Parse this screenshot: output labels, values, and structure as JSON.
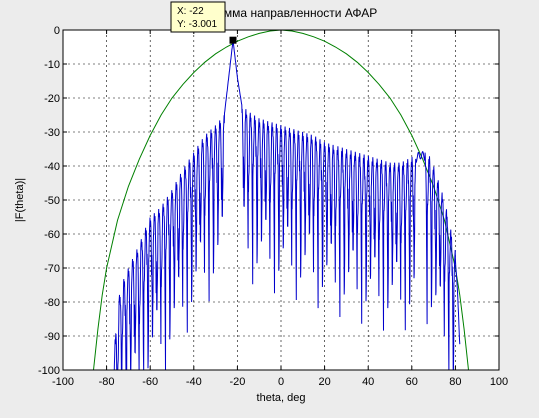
{
  "chart_data": {
    "type": "line",
    "title": "Диаграмма направленности АФАР",
    "xlabel": "theta, deg",
    "ylabel": "|F(theta)|",
    "xlim": [
      -100,
      100
    ],
    "ylim": [
      -100,
      0
    ],
    "xticks": [
      -100,
      -80,
      -60,
      -40,
      -20,
      0,
      20,
      40,
      60,
      80,
      100
    ],
    "yticks": [
      0,
      -10,
      -20,
      -30,
      -40,
      -50,
      -60,
      -70,
      -80,
      -90,
      -100
    ],
    "grid": true,
    "colors": {
      "array_pattern": "#0000cc",
      "element_pattern": "#008000",
      "plot_bg": "#ffffff",
      "figure_bg": "#ececec",
      "datatip_bg": "#ffffcc"
    },
    "element_pattern": {
      "x": [
        -86,
        -84,
        -82,
        -80,
        -75,
        -70,
        -65,
        -60,
        -55,
        -50,
        -45,
        -40,
        -35,
        -30,
        -25,
        -20,
        -15,
        -10,
        -5,
        0,
        5,
        10,
        15,
        20,
        25,
        30,
        35,
        40,
        45,
        50,
        55,
        60,
        65,
        70,
        75,
        80,
        82,
        84,
        86
      ],
      "y": [
        -100,
        -88,
        -78,
        -70,
        -56,
        -46,
        -38,
        -31,
        -25,
        -20,
        -16,
        -12.5,
        -9.5,
        -7,
        -5,
        -3.3,
        -2,
        -1,
        -0.3,
        0,
        -0.3,
        -1,
        -2,
        -3.3,
        -5,
        -7,
        -9.5,
        -12.5,
        -16,
        -20,
        -25,
        -31,
        -38,
        -46,
        -56,
        -70,
        -78,
        -88,
        -100
      ]
    },
    "array_envelope": {
      "x": [
        -77,
        -75,
        -72,
        -70,
        -65,
        -62,
        -60,
        -55,
        -50,
        -45,
        -40,
        -35,
        -30,
        -26,
        -24,
        -22,
        -20,
        -18,
        -15,
        -10,
        -5,
        0,
        5,
        10,
        15,
        20,
        25,
        30,
        35,
        40,
        45,
        50,
        55,
        58,
        61,
        63,
        64,
        66,
        68,
        70,
        75,
        80,
        82
      ],
      "y": [
        -100,
        -80,
        -73,
        -70,
        -63,
        -58,
        -55,
        -52,
        -47,
        -41,
        -36,
        -31,
        -28,
        -25,
        -14,
        -3,
        -14,
        -22,
        -24,
        -26,
        -27,
        -28,
        -29,
        -30,
        -31,
        -33,
        -34,
        -35,
        -36,
        -37,
        -38,
        -39,
        -39,
        -38,
        -37,
        -36,
        -35.5,
        -36,
        -37,
        -40,
        -50,
        -65,
        -90
      ]
    },
    "array_nulls": [
      -81,
      -79,
      -77,
      -75,
      -73,
      -71,
      -69,
      -67,
      -65,
      -63,
      -61,
      -59,
      -57,
      -55,
      -53,
      -51,
      -49,
      -47,
      -45,
      -43,
      -41,
      -39,
      -37,
      -35,
      -33,
      -31,
      -29,
      -27,
      -25,
      -19,
      -17,
      -15,
      -13,
      -11,
      -9,
      -7,
      -5,
      -3,
      -1,
      1,
      3,
      5,
      7,
      9,
      11,
      13,
      15,
      17,
      19,
      21,
      23,
      25,
      27,
      29,
      31,
      33,
      35,
      37,
      39,
      41,
      43,
      45,
      47,
      49,
      51,
      53,
      55,
      57,
      59,
      61,
      67,
      69,
      71,
      73,
      75,
      77,
      79
    ],
    "datatip": {
      "x": -22,
      "y": -3.001,
      "x_label": "X: -22",
      "y_label": "Y: -3.001"
    }
  }
}
